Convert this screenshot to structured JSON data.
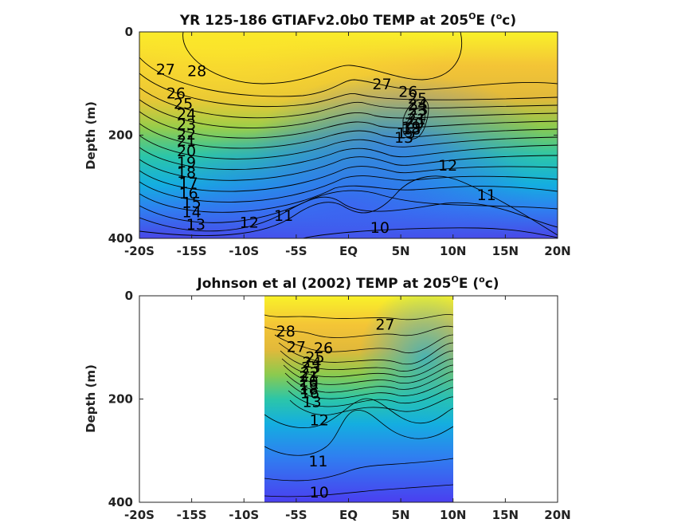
{
  "chart_data": [
    {
      "type": "heatmap",
      "subtype": "filled-contour",
      "title": "YR 125-186 GTIAFv2.0b0 TEMP at 205ºE (ºc)",
      "title_parts": [
        "YR 125-186 GTIAFv2.0b0 TEMP at 205",
        "O",
        "E (",
        "o",
        "c)"
      ],
      "xlabel": "",
      "ylabel": "Depth (m)",
      "xlim": [
        -20,
        20
      ],
      "ylim": [
        0,
        400
      ],
      "y_reversed": true,
      "x_tick_values": [
        -20,
        -15,
        -10,
        -5,
        0,
        5,
        10,
        15,
        20
      ],
      "x_tick_labels": [
        "-20S",
        "-15S",
        "-10S",
        "-5S",
        "EQ",
        "5N",
        "10N",
        "15N",
        "20N"
      ],
      "y_tick_values": [
        0,
        200,
        400
      ],
      "y_tick_labels": [
        "0",
        "200",
        "400"
      ],
      "data_extent_x": [
        -20,
        20
      ],
      "color_range_degC": [
        9,
        29
      ],
      "colormap": [
        "#3e26a8",
        "#4a3ff0",
        "#2f7ff0",
        "#14aee0",
        "#2cc6a8",
        "#8cca4e",
        "#e2b93a",
        "#fcd42c",
        "#f9fb15"
      ],
      "contour_labels": [
        {
          "level": "28",
          "x": -14.5,
          "y": 75
        },
        {
          "level": "27",
          "x": -17.5,
          "y": 72
        },
        {
          "level": "26",
          "x": -16.5,
          "y": 118
        },
        {
          "level": "25",
          "x": -15.8,
          "y": 138
        },
        {
          "level": "24",
          "x": -15.5,
          "y": 158
        },
        {
          "level": "23",
          "x": -15.5,
          "y": 178
        },
        {
          "level": "22",
          "x": -15.5,
          "y": 198
        },
        {
          "level": "21",
          "x": -15.5,
          "y": 210
        },
        {
          "level": "20",
          "x": -15.5,
          "y": 230
        },
        {
          "level": "19",
          "x": -15.5,
          "y": 252
        },
        {
          "level": "18",
          "x": -15.5,
          "y": 272
        },
        {
          "level": "17",
          "x": -15.3,
          "y": 292
        },
        {
          "level": "16",
          "x": -15.3,
          "y": 312
        },
        {
          "level": "15",
          "x": -15.0,
          "y": 330
        },
        {
          "level": "14",
          "x": -15.0,
          "y": 348
        },
        {
          "level": "13",
          "x": -14.6,
          "y": 372
        },
        {
          "level": "12",
          "x": -9.5,
          "y": 368
        },
        {
          "level": "11",
          "x": -6.2,
          "y": 355
        },
        {
          "level": "10",
          "x": 3.0,
          "y": 378
        },
        {
          "level": "27",
          "x": 3.2,
          "y": 100
        },
        {
          "level": "26",
          "x": 5.7,
          "y": 115
        },
        {
          "level": "25",
          "x": 6.6,
          "y": 128
        },
        {
          "level": "24",
          "x": 6.6,
          "y": 140
        },
        {
          "level": "23",
          "x": 6.7,
          "y": 150
        },
        {
          "level": "22",
          "x": 6.6,
          "y": 160
        },
        {
          "level": "21",
          "x": 6.5,
          "y": 168
        },
        {
          "level": "20",
          "x": 6.3,
          "y": 176
        },
        {
          "level": "19",
          "x": 6.0,
          "y": 184
        },
        {
          "level": "18",
          "x": 6.0,
          "y": 188
        },
        {
          "level": "15",
          "x": 5.5,
          "y": 195
        },
        {
          "level": "13",
          "x": 5.3,
          "y": 204
        },
        {
          "level": "12",
          "x": 9.5,
          "y": 258
        },
        {
          "level": "11",
          "x": 13.2,
          "y": 315
        }
      ]
    },
    {
      "type": "heatmap",
      "subtype": "filled-contour",
      "title": "Johnson et al (2002) TEMP at 205ºE (ºc)",
      "title_parts": [
        "Johnson et al (2002) TEMP at 205",
        "O",
        "E (",
        "o",
        "c)"
      ],
      "xlabel": "",
      "ylabel": "Depth (m)",
      "xlim": [
        -20,
        20
      ],
      "ylim": [
        0,
        400
      ],
      "y_reversed": true,
      "x_tick_values": [
        -20,
        -15,
        -10,
        -5,
        0,
        5,
        10,
        15,
        20
      ],
      "x_tick_labels": [
        "-20S",
        "-15S",
        "-10S",
        "-5S",
        "EQ",
        "5N",
        "10N",
        "15N",
        "20N"
      ],
      "y_tick_values": [
        0,
        200,
        400
      ],
      "y_tick_labels": [
        "0",
        "200",
        "400"
      ],
      "data_extent_x": [
        -8,
        10
      ],
      "color_range_degC": [
        9,
        29
      ],
      "colormap": [
        "#3e26a8",
        "#4a3ff0",
        "#2f7ff0",
        "#14aee0",
        "#2cc6a8",
        "#8cca4e",
        "#e2b93a",
        "#fcd42c",
        "#f9fb15"
      ],
      "contour_labels": [
        {
          "level": "28",
          "x": -6.0,
          "y": 68
        },
        {
          "level": "27",
          "x": -5.0,
          "y": 98
        },
        {
          "level": "26",
          "x": -2.4,
          "y": 100
        },
        {
          "level": "25",
          "x": -3.2,
          "y": 118
        },
        {
          "level": "24",
          "x": -3.5,
          "y": 128
        },
        {
          "level": "23",
          "x": -3.6,
          "y": 138
        },
        {
          "level": "22",
          "x": -3.7,
          "y": 148
        },
        {
          "level": "21",
          "x": -3.8,
          "y": 156
        },
        {
          "level": "20",
          "x": -3.8,
          "y": 165
        },
        {
          "level": "19",
          "x": -3.8,
          "y": 172
        },
        {
          "level": "18",
          "x": -3.8,
          "y": 180
        },
        {
          "level": "16",
          "x": -3.7,
          "y": 188
        },
        {
          "level": "13",
          "x": -3.5,
          "y": 205
        },
        {
          "level": "12",
          "x": -2.8,
          "y": 240
        },
        {
          "level": "27",
          "x": 3.5,
          "y": 55
        },
        {
          "level": "11",
          "x": -2.9,
          "y": 320
        },
        {
          "level": "10",
          "x": -2.8,
          "y": 380
        }
      ]
    }
  ]
}
